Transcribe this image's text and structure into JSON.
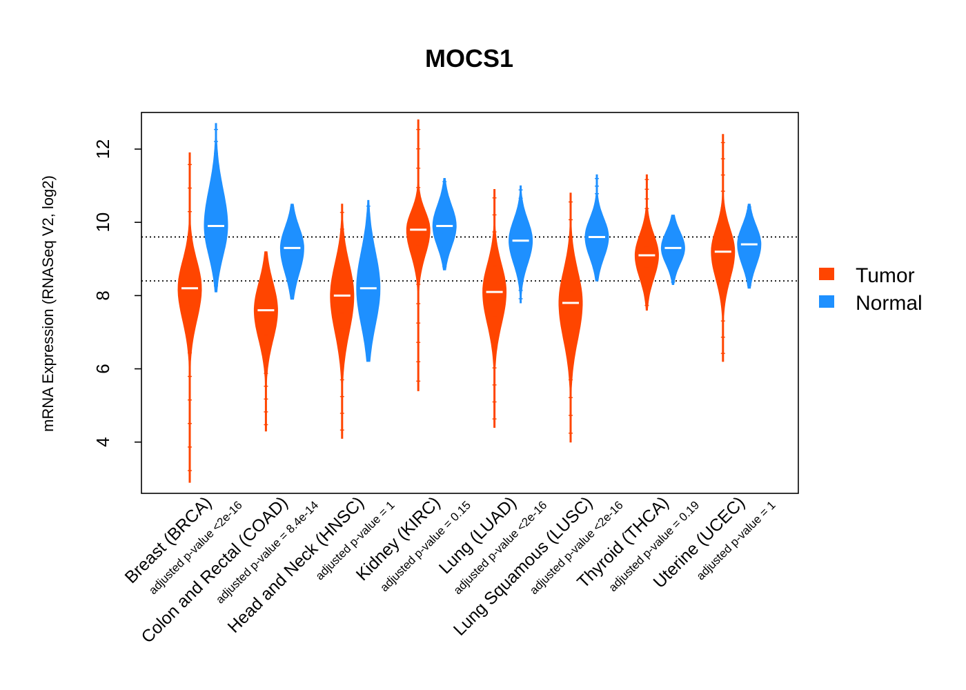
{
  "chart_data": {
    "type": "violin",
    "title": "MOCS1",
    "xlabel": "",
    "ylabel": "mRNA Expression (RNASeq V2, log2)",
    "ylim": [
      2.6,
      13.0
    ],
    "yticks": [
      4,
      6,
      8,
      10,
      12
    ],
    "reference_lines": [
      8.4,
      9.6
    ],
    "legend": {
      "position": "right",
      "entries": [
        {
          "label": "Tumor",
          "color": "#FF4500"
        },
        {
          "label": "Normal",
          "color": "#1E90FF"
        }
      ]
    },
    "categories": [
      {
        "name": "Breast (BRCA)",
        "pvalue": "adjusted p-value <2e-16",
        "tumor": {
          "median": 8.2,
          "low": 6.8,
          "high": 9.4,
          "min": 2.9,
          "max": 11.9
        },
        "normal": {
          "median": 9.9,
          "low": 8.6,
          "high": 11.5,
          "min": 8.1,
          "max": 12.7
        }
      },
      {
        "name": "Colon and Rectal (COAD)",
        "pvalue": "adjusted p-value = 8.4e-14",
        "tumor": {
          "median": 7.6,
          "low": 6.3,
          "high": 8.8,
          "min": 4.3,
          "max": 9.2
        },
        "normal": {
          "median": 9.3,
          "low": 8.2,
          "high": 10.2,
          "min": 7.9,
          "max": 10.5
        }
      },
      {
        "name": "Head and Neck (HNSC)",
        "pvalue": "adjusted p-value = 1",
        "tumor": {
          "median": 8.0,
          "low": 6.4,
          "high": 9.4,
          "min": 4.1,
          "max": 10.5
        },
        "normal": {
          "median": 8.2,
          "low": 6.6,
          "high": 9.8,
          "min": 6.2,
          "max": 10.6
        }
      },
      {
        "name": "Kidney (KIRC)",
        "pvalue": "adjusted p-value = 0.15",
        "tumor": {
          "median": 9.8,
          "low": 8.7,
          "high": 10.6,
          "min": 5.4,
          "max": 12.8
        },
        "normal": {
          "median": 9.9,
          "low": 9.0,
          "high": 10.8,
          "min": 8.7,
          "max": 11.2
        }
      },
      {
        "name": "Lung (LUAD)",
        "pvalue": "adjusted p-value <2e-16",
        "tumor": {
          "median": 8.1,
          "low": 6.7,
          "high": 9.3,
          "min": 4.4,
          "max": 10.9
        },
        "normal": {
          "median": 9.5,
          "low": 8.5,
          "high": 10.4,
          "min": 7.8,
          "max": 11.0
        }
      },
      {
        "name": "Lung Squamous (LUSC)",
        "pvalue": "adjusted p-value <2e-16",
        "tumor": {
          "median": 7.8,
          "low": 6.2,
          "high": 9.2,
          "min": 4.0,
          "max": 10.8
        },
        "normal": {
          "median": 9.6,
          "low": 8.7,
          "high": 10.4,
          "min": 8.4,
          "max": 11.3
        }
      },
      {
        "name": "Thyroid (THCA)",
        "pvalue": "adjusted p-value = 0.19",
        "tumor": {
          "median": 9.1,
          "low": 8.1,
          "high": 10.0,
          "min": 7.6,
          "max": 11.3
        },
        "normal": {
          "median": 9.3,
          "low": 8.6,
          "high": 10.0,
          "min": 8.3,
          "max": 10.2
        }
      },
      {
        "name": "Uterine (UCEC)",
        "pvalue": "adjusted p-value = 1",
        "tumor": {
          "median": 9.2,
          "low": 8.0,
          "high": 10.2,
          "min": 6.2,
          "max": 12.4
        },
        "normal": {
          "median": 9.4,
          "low": 8.5,
          "high": 10.2,
          "min": 8.2,
          "max": 10.5
        }
      }
    ]
  }
}
